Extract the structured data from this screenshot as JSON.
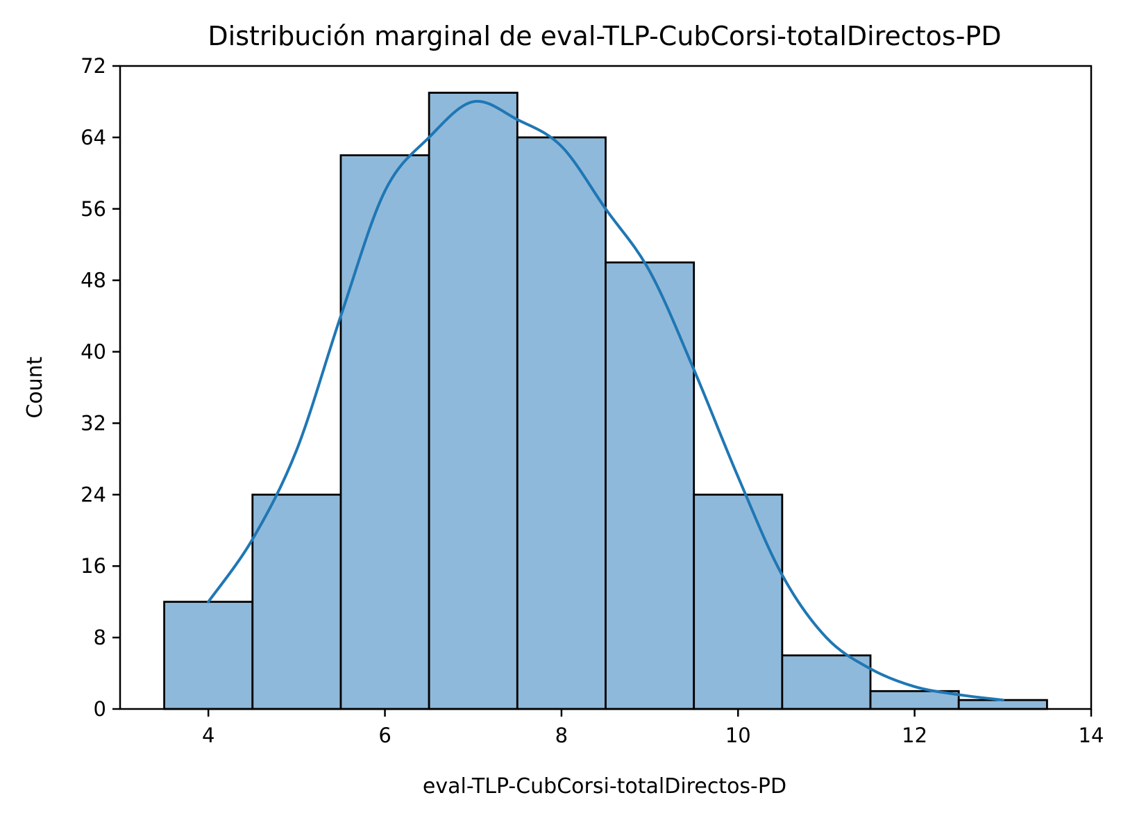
{
  "chart_data": {
    "type": "bar",
    "subtype": "histogram-with-kde",
    "title": "Distribución marginal de eval-TLP-CubCorsi-totalDirectos-PD",
    "xlabel": "eval-TLP-CubCorsi-totalDirectos-PD",
    "ylabel": "Count",
    "xlim": [
      3,
      14
    ],
    "ylim": [
      0,
      72
    ],
    "xticks": [
      4,
      6,
      8,
      10,
      12,
      14
    ],
    "yticks": [
      0,
      8,
      16,
      24,
      32,
      40,
      48,
      56,
      64,
      72
    ],
    "bins": [
      {
        "x0": 3.5,
        "x1": 4.5,
        "count": 12
      },
      {
        "x0": 4.5,
        "x1": 5.5,
        "count": 24
      },
      {
        "x0": 5.5,
        "x1": 6.5,
        "count": 62
      },
      {
        "x0": 6.5,
        "x1": 7.5,
        "count": 69
      },
      {
        "x0": 7.5,
        "x1": 8.5,
        "count": 64
      },
      {
        "x0": 8.5,
        "x1": 9.5,
        "count": 50
      },
      {
        "x0": 9.5,
        "x1": 10.5,
        "count": 24
      },
      {
        "x0": 10.5,
        "x1": 11.5,
        "count": 6
      },
      {
        "x0": 11.5,
        "x1": 12.5,
        "count": 2
      },
      {
        "x0": 12.5,
        "x1": 13.5,
        "count": 1
      }
    ],
    "kde": {
      "x": [
        4,
        4.5,
        5,
        5.5,
        6,
        6.5,
        7,
        7.5,
        8,
        8.5,
        9,
        9.5,
        10,
        10.5,
        11,
        11.5,
        12,
        12.5,
        13
      ],
      "y": [
        12,
        19,
        29,
        44,
        58,
        64,
        68,
        66,
        63,
        56,
        49,
        38,
        26,
        15,
        8,
        4.5,
        2.5,
        1.6,
        1
      ]
    },
    "grid": false,
    "legend": "none",
    "colors": {
      "bar_fill": "#8fb9da",
      "bar_edge": "#000000",
      "kde_line": "#1f77b4"
    }
  }
}
